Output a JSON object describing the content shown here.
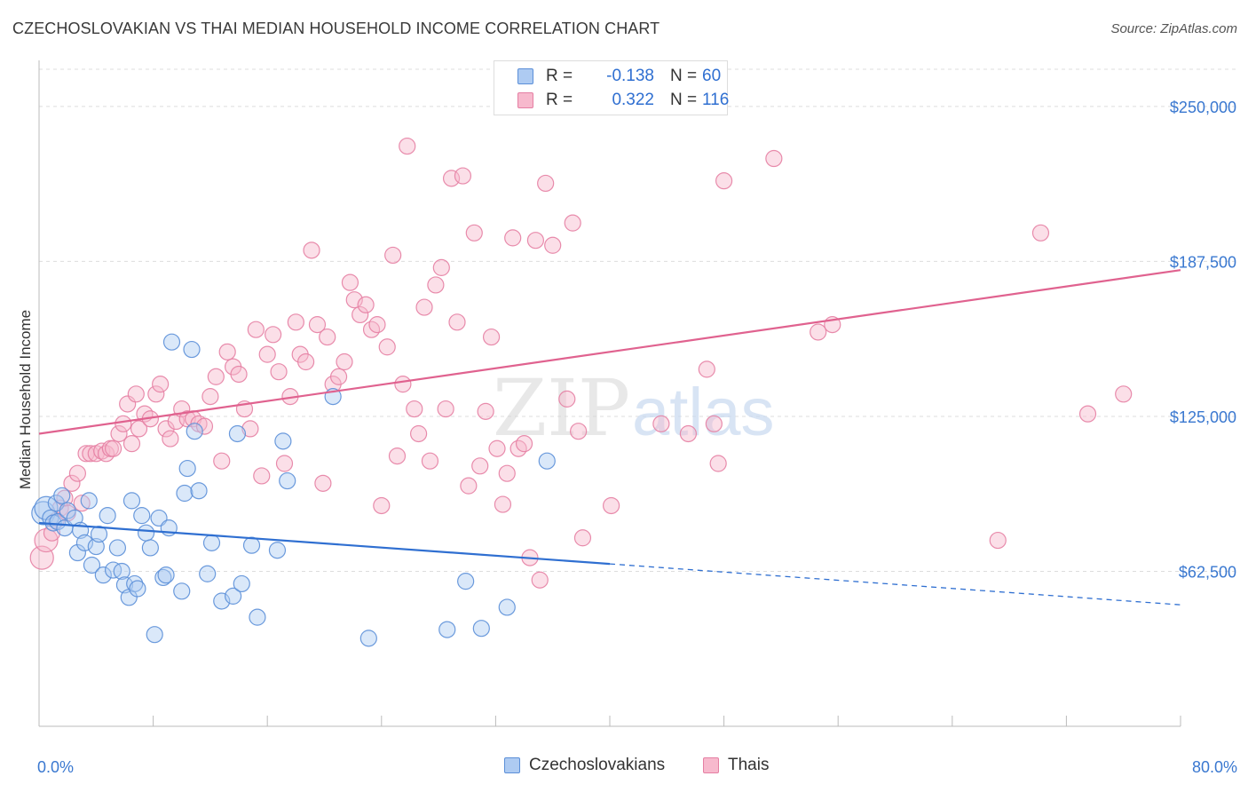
{
  "header": {
    "title": "CZECHOSLOVAKIAN VS THAI MEDIAN HOUSEHOLD INCOME CORRELATION CHART",
    "source": "Source: ZipAtlas.com"
  },
  "watermark": {
    "zip": "ZIP",
    "atlas": "atlas"
  },
  "legend": {
    "rows": [
      {
        "r_label": "R =",
        "r_value": "-0.138",
        "n_label": "N =",
        "n_value": "60"
      },
      {
        "r_label": "R =",
        "r_value": "0.322",
        "n_label": "N =",
        "n_value": "116"
      }
    ]
  },
  "colors": {
    "blue_fill": "#aecbf2",
    "blue_stroke": "#5b8fd8",
    "blue_line": "#2f6fd1",
    "pink_fill": "#f7b9cd",
    "pink_stroke": "#e57fa3",
    "pink_line": "#e0628f",
    "tick_label": "#3a78d0",
    "grid": "#dddddd"
  },
  "chart_data": {
    "type": "scatter",
    "title": "CZECHOSLOVAKIAN VS THAI MEDIAN HOUSEHOLD INCOME CORRELATION CHART",
    "xlabel": "",
    "ylabel": "Median Household Income",
    "xlim": [
      0,
      80
    ],
    "ylim": [
      0,
      265000
    ],
    "x_tick_labels": [
      "0.0%",
      "80.0%"
    ],
    "y_ticks": [
      62500,
      125000,
      187500,
      250000
    ],
    "y_tick_labels": [
      "$62,500",
      "$125,000",
      "$187,500",
      "$250,000"
    ],
    "grid": true,
    "legend_position": "bottom-center",
    "series": [
      {
        "name": "Czechoslovakians",
        "color": "#aecbf2",
        "trend": {
          "x": [
            0,
            40
          ],
          "y": [
            82000,
            65500
          ],
          "dashed_extension_to": [
            80,
            49000
          ]
        },
        "points": [
          [
            0.3,
            86000
          ],
          [
            0.5,
            88000
          ],
          [
            0.8,
            84000
          ],
          [
            1.0,
            82000
          ],
          [
            1.2,
            90000
          ],
          [
            1.3,
            82500
          ],
          [
            1.6,
            93000
          ],
          [
            1.8,
            80000
          ],
          [
            2.0,
            87000
          ],
          [
            2.5,
            84000
          ],
          [
            2.7,
            70000
          ],
          [
            2.9,
            79000
          ],
          [
            3.2,
            74000
          ],
          [
            3.5,
            91000
          ],
          [
            3.7,
            65000
          ],
          [
            4.0,
            72500
          ],
          [
            4.2,
            77500
          ],
          [
            4.5,
            61000
          ],
          [
            4.8,
            85000
          ],
          [
            5.2,
            63000
          ],
          [
            5.5,
            72000
          ],
          [
            5.8,
            62500
          ],
          [
            6.0,
            57000
          ],
          [
            6.3,
            52000
          ],
          [
            6.5,
            91000
          ],
          [
            6.7,
            57500
          ],
          [
            6.9,
            55500
          ],
          [
            7.2,
            85000
          ],
          [
            7.5,
            78000
          ],
          [
            7.8,
            72000
          ],
          [
            8.1,
            37000
          ],
          [
            8.4,
            84000
          ],
          [
            8.7,
            60000
          ],
          [
            8.9,
            61000
          ],
          [
            9.1,
            80000
          ],
          [
            9.3,
            155000
          ],
          [
            10.0,
            54500
          ],
          [
            10.2,
            94000
          ],
          [
            10.4,
            104000
          ],
          [
            10.7,
            152000
          ],
          [
            10.9,
            119000
          ],
          [
            11.2,
            95000
          ],
          [
            11.8,
            61500
          ],
          [
            12.1,
            74000
          ],
          [
            12.8,
            50500
          ],
          [
            13.6,
            52500
          ],
          [
            13.9,
            118000
          ],
          [
            14.2,
            57500
          ],
          [
            14.9,
            73000
          ],
          [
            15.3,
            44000
          ],
          [
            16.7,
            71000
          ],
          [
            17.1,
            115000
          ],
          [
            17.4,
            99000
          ],
          [
            20.6,
            133000
          ],
          [
            23.1,
            35500
          ],
          [
            28.6,
            39000
          ],
          [
            29.9,
            58500
          ],
          [
            31.0,
            39500
          ],
          [
            32.8,
            48000
          ],
          [
            35.6,
            107000
          ]
        ]
      },
      {
        "name": "Thais",
        "color": "#f7b9cd",
        "trend": {
          "x": [
            0,
            80
          ],
          "y": [
            118000,
            184000
          ]
        },
        "points": [
          [
            0.2,
            68000
          ],
          [
            0.5,
            75000
          ],
          [
            0.9,
            78000
          ],
          [
            1.2,
            83000
          ],
          [
            1.5,
            88000
          ],
          [
            1.8,
            92000
          ],
          [
            2.0,
            86000
          ],
          [
            2.3,
            98000
          ],
          [
            2.7,
            102000
          ],
          [
            3.0,
            90000
          ],
          [
            3.3,
            110000
          ],
          [
            3.6,
            110000
          ],
          [
            4.0,
            110000
          ],
          [
            4.4,
            111000
          ],
          [
            4.7,
            110000
          ],
          [
            5.0,
            112000
          ],
          [
            5.2,
            112000
          ],
          [
            5.6,
            118000
          ],
          [
            5.9,
            122000
          ],
          [
            6.2,
            130000
          ],
          [
            6.5,
            114000
          ],
          [
            6.8,
            134000
          ],
          [
            7.0,
            120000
          ],
          [
            7.4,
            126000
          ],
          [
            7.8,
            124000
          ],
          [
            8.2,
            134000
          ],
          [
            8.5,
            138000
          ],
          [
            8.9,
            120000
          ],
          [
            9.2,
            116000
          ],
          [
            9.6,
            123000
          ],
          [
            10.0,
            128000
          ],
          [
            10.4,
            124000
          ],
          [
            10.8,
            124000
          ],
          [
            11.2,
            122000
          ],
          [
            11.6,
            121000
          ],
          [
            12.0,
            133000
          ],
          [
            12.4,
            141000
          ],
          [
            12.8,
            107000
          ],
          [
            13.2,
            151000
          ],
          [
            13.6,
            145000
          ],
          [
            14.0,
            142000
          ],
          [
            14.4,
            128000
          ],
          [
            14.8,
            120000
          ],
          [
            15.2,
            160000
          ],
          [
            15.6,
            101000
          ],
          [
            16.0,
            150000
          ],
          [
            16.4,
            158000
          ],
          [
            16.8,
            143000
          ],
          [
            17.2,
            106000
          ],
          [
            17.6,
            133000
          ],
          [
            18.0,
            163000
          ],
          [
            18.3,
            150000
          ],
          [
            18.7,
            147000
          ],
          [
            19.1,
            192000
          ],
          [
            19.5,
            162000
          ],
          [
            19.9,
            98000
          ],
          [
            20.2,
            157000
          ],
          [
            20.6,
            138000
          ],
          [
            21.0,
            141000
          ],
          [
            21.4,
            147000
          ],
          [
            21.8,
            179000
          ],
          [
            22.1,
            172000
          ],
          [
            22.5,
            166000
          ],
          [
            22.9,
            170000
          ],
          [
            23.3,
            160000
          ],
          [
            23.7,
            162000
          ],
          [
            24.0,
            89000
          ],
          [
            24.4,
            153000
          ],
          [
            24.8,
            190000
          ],
          [
            25.1,
            109000
          ],
          [
            25.5,
            138000
          ],
          [
            25.8,
            234000
          ],
          [
            26.3,
            128000
          ],
          [
            26.6,
            118000
          ],
          [
            27.0,
            169000
          ],
          [
            27.4,
            107000
          ],
          [
            27.8,
            178000
          ],
          [
            28.2,
            185000
          ],
          [
            28.5,
            128000
          ],
          [
            28.9,
            221000
          ],
          [
            29.3,
            163000
          ],
          [
            29.7,
            222000
          ],
          [
            30.1,
            97000
          ],
          [
            30.5,
            199000
          ],
          [
            30.9,
            105000
          ],
          [
            31.3,
            127000
          ],
          [
            31.7,
            157000
          ],
          [
            32.1,
            112000
          ],
          [
            32.5,
            89500
          ],
          [
            32.8,
            102000
          ],
          [
            33.2,
            197000
          ],
          [
            33.6,
            112000
          ],
          [
            34.0,
            114000
          ],
          [
            34.4,
            68000
          ],
          [
            34.8,
            196000
          ],
          [
            35.1,
            59000
          ],
          [
            35.5,
            219000
          ],
          [
            36.0,
            194000
          ],
          [
            37.0,
            132000
          ],
          [
            37.4,
            203000
          ],
          [
            37.8,
            119000
          ],
          [
            38.1,
            76000
          ],
          [
            40.1,
            89000
          ],
          [
            43.6,
            122000
          ],
          [
            45.5,
            118000
          ],
          [
            46.8,
            144000
          ],
          [
            47.3,
            122000
          ],
          [
            47.6,
            106000
          ],
          [
            48.0,
            220000
          ],
          [
            51.5,
            229000
          ],
          [
            54.6,
            159000
          ],
          [
            55.6,
            162000
          ],
          [
            67.2,
            75000
          ],
          [
            70.2,
            199000
          ],
          [
            73.5,
            126000
          ],
          [
            76.0,
            134000
          ]
        ]
      }
    ]
  }
}
